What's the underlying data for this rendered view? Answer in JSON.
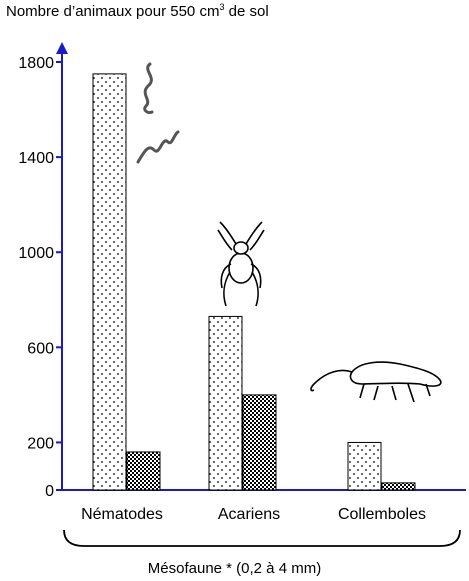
{
  "chart_data": {
    "type": "bar",
    "ylabel_prefix": "Nombre d’animaux pour 550 cm",
    "ylabel_sup": "3",
    "ylabel_suffix": " de sol",
    "categories": [
      "Nématodes",
      "Acariens",
      "Collemboles"
    ],
    "series": [
      {
        "pattern": "dots",
        "values": [
          1750,
          730,
          200
        ]
      },
      {
        "pattern": "checker",
        "values": [
          160,
          400,
          30
        ]
      }
    ],
    "yticks": [
      0,
      200,
      600,
      1000,
      1400,
      1800
    ],
    "ylim": [
      0,
      1800
    ],
    "group_label": "Mésofaune *  (0,2 à 4 mm)",
    "grid": false,
    "illustrations": [
      "nematode-worm-icon",
      "mite-icon",
      "springtail-icon"
    ]
  }
}
